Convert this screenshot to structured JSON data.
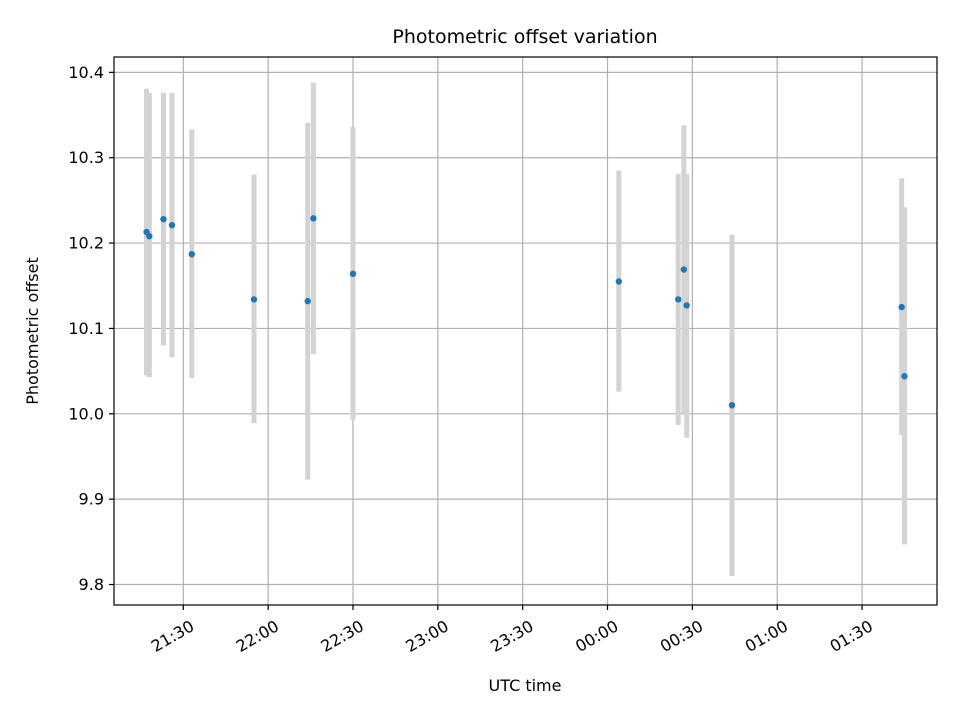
{
  "chart_data": {
    "type": "scatter",
    "title": "Photometric offset variation",
    "xlabel": "UTC time",
    "ylabel": "Photometric offset",
    "x_tick_labels": [
      "21:30",
      "22:00",
      "22:30",
      "23:00",
      "23:30",
      "00:00",
      "00:30",
      "01:00",
      "01:30"
    ],
    "y_tick_labels": [
      "9.8",
      "9.9",
      "10.0",
      "10.1",
      "10.2",
      "10.3",
      "10.4"
    ],
    "x_ticks_minutes": [
      0,
      30,
      60,
      90,
      120,
      150,
      180,
      210,
      240
    ],
    "y_ticks": [
      9.8,
      9.9,
      10.0,
      10.1,
      10.2,
      10.3,
      10.4
    ],
    "x_range_minutes": [
      -24.5,
      266.5
    ],
    "ylim": [
      9.776,
      10.418
    ],
    "grid": true,
    "colors": {
      "points": "#1f77b4",
      "error_bars": "#d3d3d3",
      "grid": "#b0b0b0"
    },
    "series": [
      {
        "points": [
          {
            "x": "21:17",
            "y": 10.213,
            "yerr_low": 10.045,
            "yerr_high": 10.381
          },
          {
            "x": "21:18",
            "y": 10.208,
            "yerr_low": 10.043,
            "yerr_high": 10.376
          },
          {
            "x": "21:23",
            "y": 10.228,
            "yerr_low": 10.08,
            "yerr_high": 10.376
          },
          {
            "x": "21:26",
            "y": 10.221,
            "yerr_low": 10.066,
            "yerr_high": 10.376
          },
          {
            "x": "21:33",
            "y": 10.187,
            "yerr_low": 10.042,
            "yerr_high": 10.333
          },
          {
            "x": "21:55",
            "y": 10.134,
            "yerr_low": 9.989,
            "yerr_high": 10.28
          },
          {
            "x": "22:14",
            "y": 10.132,
            "yerr_low": 9.923,
            "yerr_high": 10.341
          },
          {
            "x": "22:16",
            "y": 10.229,
            "yerr_low": 10.07,
            "yerr_high": 10.388
          },
          {
            "x": "22:30",
            "y": 10.164,
            "yerr_low": 9.993,
            "yerr_high": 10.336
          },
          {
            "x": "00:04",
            "y": 10.155,
            "yerr_low": 10.026,
            "yerr_high": 10.285
          },
          {
            "x": "00:25",
            "y": 10.134,
            "yerr_low": 9.987,
            "yerr_high": 10.281
          },
          {
            "x": "00:27",
            "y": 10.169,
            "yerr_low": 10.0,
            "yerr_high": 10.338
          },
          {
            "x": "00:28",
            "y": 10.127,
            "yerr_low": 9.972,
            "yerr_high": 10.281
          },
          {
            "x": "00:44",
            "y": 10.01,
            "yerr_low": 9.81,
            "yerr_high": 10.21
          },
          {
            "x": "01:44",
            "y": 10.125,
            "yerr_low": 9.975,
            "yerr_high": 10.276
          },
          {
            "x": "01:45",
            "y": 10.044,
            "yerr_low": 9.847,
            "yerr_high": 10.242
          }
        ]
      }
    ]
  }
}
